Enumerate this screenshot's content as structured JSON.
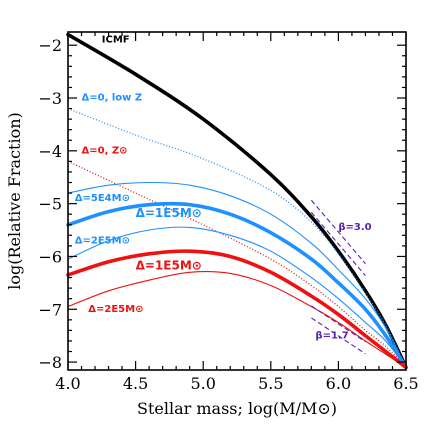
{
  "chart_data": {
    "type": "line",
    "xlabel": "Stellar mass; log(M/M⊙)",
    "ylabel": "log(Relative Fraction)",
    "xlim": [
      4.0,
      6.5
    ],
    "ylim": [
      -8.15,
      -1.75
    ],
    "xticks": [
      "4.0",
      "4.5",
      "5.0",
      "5.5",
      "6.0",
      "6.5"
    ],
    "yticks": [
      "−2",
      "−3",
      "−4",
      "−5",
      "−6",
      "−7",
      "−8"
    ],
    "colors": {
      "black": "#000000",
      "blue": "#1e90ff",
      "red": "#ee1111",
      "purple": "#5a1fb0"
    },
    "series": [
      {
        "name": "ICMF",
        "style": "thick-solid",
        "color": "black",
        "x": [
          4.0,
          4.5,
          5.0,
          5.5,
          5.8,
          6.0,
          6.2,
          6.35,
          6.5
        ],
        "y": [
          -1.8,
          -2.55,
          -3.4,
          -4.45,
          -5.25,
          -5.9,
          -6.65,
          -7.3,
          -8.1
        ]
      },
      {
        "name": "Δ=0, low Z",
        "style": "dotted",
        "color": "blue",
        "x": [
          4.0,
          4.5,
          5.0,
          5.5,
          5.8,
          6.0,
          6.2,
          6.35,
          6.5
        ],
        "y": [
          -3.2,
          -3.7,
          -4.15,
          -4.75,
          -5.35,
          -5.95,
          -6.7,
          -7.3,
          -8.1
        ]
      },
      {
        "name": "Δ=0, Z⊙",
        "style": "dotted",
        "color": "red",
        "x": [
          4.0,
          4.5,
          5.0,
          5.5,
          5.8,
          6.0,
          6.2,
          6.35,
          6.5
        ],
        "y": [
          -4.2,
          -4.8,
          -5.4,
          -6.05,
          -6.55,
          -6.95,
          -7.4,
          -7.7,
          -8.1
        ]
      },
      {
        "name": "Δ=5E4M⊙",
        "style": "thin-solid",
        "color": "blue",
        "x": [
          4.0,
          4.3,
          4.6,
          4.9,
          5.2,
          5.5,
          5.8,
          6.0,
          6.2,
          6.35,
          6.5
        ],
        "y": [
          -4.8,
          -4.65,
          -4.6,
          -4.65,
          -4.85,
          -5.2,
          -5.75,
          -6.25,
          -6.8,
          -7.35,
          -8.1
        ]
      },
      {
        "name": "Δ=1E5M⊙",
        "style": "thick-solid",
        "color": "blue",
        "x": [
          4.0,
          4.3,
          4.6,
          4.9,
          5.2,
          5.5,
          5.8,
          6.0,
          6.2,
          6.35,
          6.5
        ],
        "y": [
          -5.4,
          -5.15,
          -5.02,
          -5.02,
          -5.2,
          -5.55,
          -6.05,
          -6.5,
          -7.0,
          -7.5,
          -8.1
        ]
      },
      {
        "name": "Δ=2E5M⊙",
        "style": "thin-solid",
        "color": "blue",
        "x": [
          4.0,
          4.3,
          4.6,
          4.9,
          5.2,
          5.5,
          5.8,
          6.0,
          6.2,
          6.35,
          6.5
        ],
        "y": [
          -6.05,
          -5.7,
          -5.5,
          -5.45,
          -5.6,
          -5.9,
          -6.4,
          -6.8,
          -7.25,
          -7.6,
          -8.1
        ]
      },
      {
        "name": "Δ=1E5M⊙",
        "style": "thick-solid",
        "color": "red",
        "x": [
          4.0,
          4.3,
          4.6,
          4.9,
          5.2,
          5.5,
          5.8,
          6.0,
          6.2,
          6.35,
          6.5
        ],
        "y": [
          -6.35,
          -6.1,
          -5.95,
          -5.9,
          -6.0,
          -6.3,
          -6.75,
          -7.1,
          -7.5,
          -7.8,
          -8.1
        ]
      },
      {
        "name": "Δ=2E5M⊙",
        "style": "thin-solid",
        "color": "red",
        "x": [
          4.0,
          4.3,
          4.6,
          4.9,
          5.2,
          5.5,
          5.8,
          6.0,
          6.2,
          6.35,
          6.5
        ],
        "y": [
          -6.95,
          -6.65,
          -6.45,
          -6.3,
          -6.32,
          -6.55,
          -6.95,
          -7.25,
          -7.6,
          -7.85,
          -8.1
        ]
      }
    ],
    "slope_guides": [
      {
        "label": "β=3.0",
        "x": [
          5.8,
          6.2
        ],
        "y": [
          -5.05,
          -6.25
        ]
      },
      {
        "label": "β=1.7",
        "x": [
          5.8,
          6.2
        ],
        "y": [
          -7.05,
          -7.73
        ]
      }
    ],
    "labels": [
      {
        "text": "ICMF",
        "color": "black",
        "x": 4.25,
        "y": -1.95,
        "size": "small"
      },
      {
        "text": "Δ=0, low Z",
        "color": "blue",
        "x": 4.1,
        "y": -3.05,
        "size": "small"
      },
      {
        "text": "Δ=0, Z⊙",
        "color": "red",
        "x": 4.1,
        "y": -4.05,
        "size": "small"
      },
      {
        "text": "Δ=5E4M⊙",
        "color": "blue",
        "x": 4.05,
        "y": -4.95,
        "size": "small"
      },
      {
        "text": "Δ=1E5M⊙",
        "color": "blue",
        "x": 4.5,
        "y": -5.25,
        "size": "big"
      },
      {
        "text": "Δ=2E5M⊙",
        "color": "blue",
        "x": 4.05,
        "y": -5.75,
        "size": "small"
      },
      {
        "text": "Δ=1E5M⊙",
        "color": "red",
        "x": 4.5,
        "y": -6.25,
        "size": "big"
      },
      {
        "text": "Δ=2E5M⊙",
        "color": "red",
        "x": 4.15,
        "y": -7.05,
        "size": "small"
      },
      {
        "text": "β=3.0",
        "color": "purple",
        "x": 6.0,
        "y": -5.5,
        "size": "small"
      },
      {
        "text": "β=1.7",
        "color": "purple",
        "x": 5.83,
        "y": -7.55,
        "size": "small"
      }
    ],
    "grid": false
  }
}
